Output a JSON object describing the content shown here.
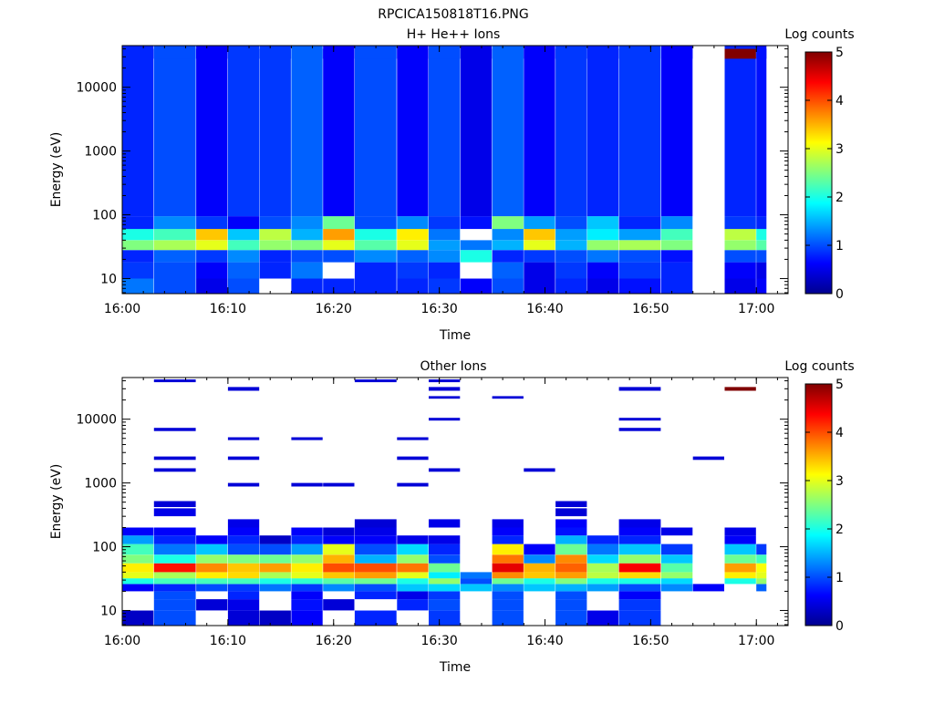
{
  "figure": {
    "title": "RPCICA150818T16.PNG"
  },
  "colors": {
    "colormap": [
      "#00008f",
      "#0000ff",
      "#0080ff",
      "#00ffff",
      "#80ff80",
      "#ffff00",
      "#ff8000",
      "#ff0000",
      "#800000"
    ],
    "background": "#ffffff",
    "axis": "#000000"
  },
  "chart_data": [
    {
      "type": "heatmap",
      "title": "H+ He++ Ions",
      "xlabel": "Time",
      "ylabel": "Energy (eV)",
      "yscale": "log",
      "ylim": [
        5.8,
        45000
      ],
      "xlim": [
        "16:00",
        "17:03"
      ],
      "xticks": [
        "16:00",
        "16:10",
        "16:20",
        "16:30",
        "16:40",
        "16:50",
        "17:00"
      ],
      "yticks": [
        "10",
        "100",
        "1000",
        "10000"
      ],
      "colorbar": {
        "label": "Log counts",
        "range": [
          0,
          5
        ],
        "ticks": [
          "0",
          "1",
          "2",
          "3",
          "4",
          "5"
        ]
      },
      "scan_times": [
        "16:00",
        "16:03",
        "16:07",
        "16:10",
        "16:13",
        "16:16",
        "16:19",
        "16:22",
        "16:26",
        "16:29",
        "16:32",
        "16:35",
        "16:38",
        "16:41",
        "16:44",
        "16:47",
        "16:51",
        "16:54",
        "16:57",
        "17:00"
      ],
      "scan_end": "17:01",
      "energy_bands": [
        {
          "e": [
            5.8,
            10
          ],
          "v": [
            1.2,
            1.0,
            0.5,
            1.0,
            0,
            0.8,
            0.8,
            0.8,
            0.8,
            0.9,
            0.6,
            1.0,
            0.5,
            0.8,
            0.5,
            0.7,
            0.8,
            0,
            0.5,
            0.6
          ]
        },
        {
          "e": [
            10,
            18
          ],
          "v": [
            0.9,
            1.0,
            0.6,
            1.1,
            0.8,
            1.2,
            0,
            0.8,
            0.9,
            0.8,
            0,
            1.1,
            0.5,
            0.9,
            0.6,
            0.9,
            0.8,
            0,
            0.6,
            0.5
          ]
        },
        {
          "e": [
            18,
            28
          ],
          "v": [
            0.8,
            1.1,
            0.9,
            1.3,
            0.8,
            1.0,
            1.0,
            1.3,
            1.1,
            1.3,
            2.0,
            0.8,
            0.9,
            1.0,
            1.2,
            1.0,
            0.7,
            0,
            1.0,
            1.0
          ]
        },
        {
          "e": [
            28,
            40
          ],
          "v": [
            2.5,
            2.7,
            3.0,
            2.2,
            2.6,
            2.5,
            3.0,
            2.3,
            3.0,
            1.4,
            1.2,
            1.5,
            3.0,
            1.5,
            2.6,
            2.7,
            2.5,
            0,
            2.6,
            2.3
          ]
        },
        {
          "e": [
            40,
            60
          ],
          "v": [
            2.0,
            2.2,
            3.4,
            1.6,
            2.8,
            1.5,
            3.6,
            2.0,
            3.2,
            1.2,
            0,
            1.3,
            3.4,
            1.4,
            1.8,
            1.4,
            2.2,
            0,
            2.8,
            2.0
          ]
        },
        {
          "e": [
            60,
            95
          ],
          "v": [
            0.8,
            1.3,
            0.9,
            0.6,
            1.0,
            1.3,
            2.4,
            1.0,
            1.3,
            0.9,
            0.7,
            2.5,
            1.4,
            1.0,
            1.6,
            0.8,
            1.3,
            0,
            0.9,
            0.8
          ]
        },
        {
          "e": [
            95,
            45000
          ],
          "v": [
            0.8,
            1.0,
            0.6,
            0.9,
            0.9,
            1.1,
            0.6,
            1.0,
            0.6,
            1.0,
            0.5,
            1.1,
            0.6,
            0.9,
            0.8,
            0.9,
            0.6,
            0,
            0.8,
            0.7
          ]
        },
        {
          "e": [
            28000,
            40000
          ],
          "v": [
            0.8,
            1.0,
            0.6,
            0.9,
            0.9,
            1.1,
            0.6,
            1.0,
            0.6,
            1.0,
            0.5,
            1.1,
            0.6,
            0.9,
            0.8,
            0.9,
            0.6,
            0,
            5.0,
            0.7
          ]
        }
      ]
    },
    {
      "type": "heatmap",
      "title": "Other Ions",
      "xlabel": "Time",
      "ylabel": "Energy (eV)",
      "yscale": "log",
      "ylim": [
        5.8,
        45000
      ],
      "xlim": [
        "16:00",
        "17:03"
      ],
      "xticks": [
        "16:00",
        "16:10",
        "16:20",
        "16:30",
        "16:40",
        "16:50",
        "17:00"
      ],
      "yticks": [
        "10",
        "100",
        "1000",
        "10000"
      ],
      "colorbar": {
        "label": "Log counts",
        "range": [
          0,
          5
        ],
        "ticks": [
          "0",
          "1",
          "2",
          "3",
          "4",
          "5"
        ]
      },
      "scan_times": [
        "16:00",
        "16:03",
        "16:07",
        "16:10",
        "16:13",
        "16:16",
        "16:19",
        "16:22",
        "16:26",
        "16:29",
        "16:32",
        "16:35",
        "16:38",
        "16:41",
        "16:44",
        "16:47",
        "16:51",
        "16:54",
        "16:57",
        "17:00"
      ],
      "scan_end": "17:01",
      "energy_bands": [
        {
          "e": [
            5.8,
            10
          ],
          "v": [
            0.3,
            1.0,
            0,
            0.4,
            0.3,
            0.6,
            0,
            0.8,
            0,
            0.9,
            0,
            1.0,
            0,
            1.0,
            0.5,
            0.9,
            0,
            0,
            0,
            0
          ]
        },
        {
          "e": [
            10,
            15
          ],
          "v": [
            0,
            1.0,
            0.4,
            0.5,
            0,
            0.7,
            0.4,
            0,
            0.8,
            1.0,
            0,
            1.0,
            0,
            1.0,
            0,
            0.9,
            0,
            0,
            0,
            0
          ]
        },
        {
          "e": [
            15,
            20
          ],
          "v": [
            0,
            1.0,
            0,
            0.8,
            0,
            0.6,
            0,
            0.8,
            0.5,
            0.9,
            0,
            1.0,
            0,
            1.0,
            0,
            0.6,
            0,
            0,
            0,
            0
          ]
        },
        {
          "e": [
            20,
            26
          ],
          "v": [
            0.6,
            0.8,
            1.0,
            0.9,
            1.2,
            0.9,
            1.3,
            1.0,
            1.6,
            1.7,
            1.6,
            1.3,
            1.6,
            1.5,
            1.4,
            1.0,
            1.3,
            0.6,
            0,
            1.1
          ]
        },
        {
          "e": [
            26,
            32
          ],
          "v": [
            2.0,
            2.2,
            2.2,
            2.2,
            2.0,
            2.1,
            2.3,
            2.4,
            2.0,
            2.6,
            1.0,
            2.4,
            2.0,
            2.5,
            2.0,
            2.0,
            1.7,
            0,
            2.0,
            2.6
          ]
        },
        {
          "e": [
            32,
            40
          ],
          "v": [
            3.0,
            2.7,
            3.2,
            3.3,
            2.7,
            3.0,
            3.4,
            3.6,
            3.0,
            1.8,
            1.2,
            3.7,
            3.4,
            3.6,
            2.8,
            3.3,
            2.6,
            0,
            3.2,
            3.0
          ]
        },
        {
          "e": [
            40,
            55
          ],
          "v": [
            3.2,
            4.3,
            3.7,
            3.4,
            3.6,
            3.2,
            4.0,
            4.0,
            3.8,
            2.4,
            0,
            4.5,
            3.5,
            3.9,
            2.7,
            4.4,
            2.3,
            0,
            3.6,
            3.1
          ]
        },
        {
          "e": [
            55,
            75
          ],
          "v": [
            2.5,
            2.0,
            2.6,
            2.5,
            2.4,
            2.6,
            3.5,
            1.5,
            2.6,
            1.0,
            0,
            3.8,
            1.3,
            3.7,
            1.7,
            2.6,
            1.6,
            0,
            2.4,
            2.2
          ]
        },
        {
          "e": [
            75,
            110
          ],
          "v": [
            2.2,
            1.2,
            1.6,
            1.0,
            1.0,
            1.4,
            3.0,
            1.0,
            1.7,
            0.8,
            0,
            3.2,
            0.6,
            2.4,
            1.2,
            1.6,
            0.9,
            0,
            1.6,
            0.9
          ]
        },
        {
          "e": [
            110,
            150
          ],
          "v": [
            1.4,
            0.8,
            0.6,
            0.8,
            0.3,
            0.8,
            0.6,
            0.6,
            0.5,
            0.5,
            0,
            0.8,
            0,
            1.5,
            0.8,
            0.8,
            0,
            0,
            0.6,
            0
          ]
        },
        {
          "e": [
            150,
            200
          ],
          "v": [
            0.6,
            0.6,
            0,
            0.6,
            0,
            0.6,
            0.4,
            0.5,
            0,
            0,
            0,
            0.6,
            0,
            0.7,
            0,
            0.6,
            0.5,
            0,
            0.5,
            0
          ]
        },
        {
          "e": [
            200,
            270
          ],
          "v": [
            0,
            0,
            0,
            0.5,
            0,
            0,
            0,
            0.4,
            0,
            0.5,
            0,
            0.5,
            0,
            0.6,
            0,
            0.5,
            0,
            0,
            0,
            0
          ]
        },
        {
          "e": [
            300,
            400
          ],
          "v": [
            0,
            0.5,
            0,
            0,
            0,
            0,
            0,
            0,
            0,
            0,
            0,
            0,
            0,
            0.4,
            0,
            0,
            0,
            0,
            0,
            0
          ]
        },
        {
          "e": [
            420,
            520
          ],
          "v": [
            0,
            0.4,
            0,
            0,
            0,
            0,
            0,
            0,
            0,
            0,
            0,
            0,
            0,
            0.4,
            0,
            0,
            0,
            0,
            0,
            0
          ]
        },
        {
          "e": [
            880,
            1000
          ],
          "v": [
            0,
            0,
            0,
            0.4,
            0,
            0.4,
            0.4,
            0,
            0.4,
            0,
            0,
            0,
            0,
            0,
            0,
            0,
            0,
            0,
            0,
            0
          ]
        },
        {
          "e": [
            1500,
            1700
          ],
          "v": [
            0,
            0.4,
            0,
            0,
            0,
            0,
            0,
            0,
            0,
            0.4,
            0,
            0,
            0.4,
            0,
            0,
            0,
            0,
            0,
            0,
            0
          ]
        },
        {
          "e": [
            2300,
            2600
          ],
          "v": [
            0,
            0.4,
            0,
            0.4,
            0,
            0,
            0,
            0,
            0.4,
            0,
            0,
            0,
            0,
            0,
            0,
            0,
            0,
            0.4,
            0,
            0
          ]
        },
        {
          "e": [
            4700,
            5200
          ],
          "v": [
            0,
            0,
            0,
            0.4,
            0,
            0.4,
            0,
            0,
            0.4,
            0,
            0,
            0,
            0,
            0,
            0,
            0,
            0,
            0,
            0,
            0
          ]
        },
        {
          "e": [
            6500,
            7300
          ],
          "v": [
            0,
            0.4,
            0,
            0,
            0,
            0,
            0,
            0,
            0,
            0,
            0,
            0,
            0,
            0,
            0,
            0.4,
            0,
            0,
            0,
            0
          ]
        },
        {
          "e": [
            9500,
            10500
          ],
          "v": [
            0,
            0,
            0,
            0,
            0,
            0,
            0,
            0,
            0,
            0.4,
            0,
            0,
            0,
            0,
            0,
            0.4,
            0,
            0,
            0,
            0
          ]
        },
        {
          "e": [
            21000,
            23000
          ],
          "v": [
            0,
            0,
            0,
            0,
            0,
            0,
            0,
            0,
            0,
            0.4,
            0,
            0.4,
            0,
            0,
            0,
            0,
            0,
            0,
            0,
            0
          ]
        },
        {
          "e": [
            28000,
            32000
          ],
          "v": [
            0,
            0,
            0,
            0.4,
            0,
            0,
            0,
            0,
            0,
            0.4,
            0,
            0,
            0,
            0,
            0,
            0.4,
            0,
            0,
            5.0,
            0
          ]
        },
        {
          "e": [
            38000,
            42000
          ],
          "v": [
            0,
            0.4,
            0,
            0,
            0,
            0,
            0,
            0.4,
            0,
            0.4,
            0,
            0,
            0,
            0,
            0,
            0,
            0,
            0,
            0,
            0
          ]
        }
      ]
    }
  ]
}
